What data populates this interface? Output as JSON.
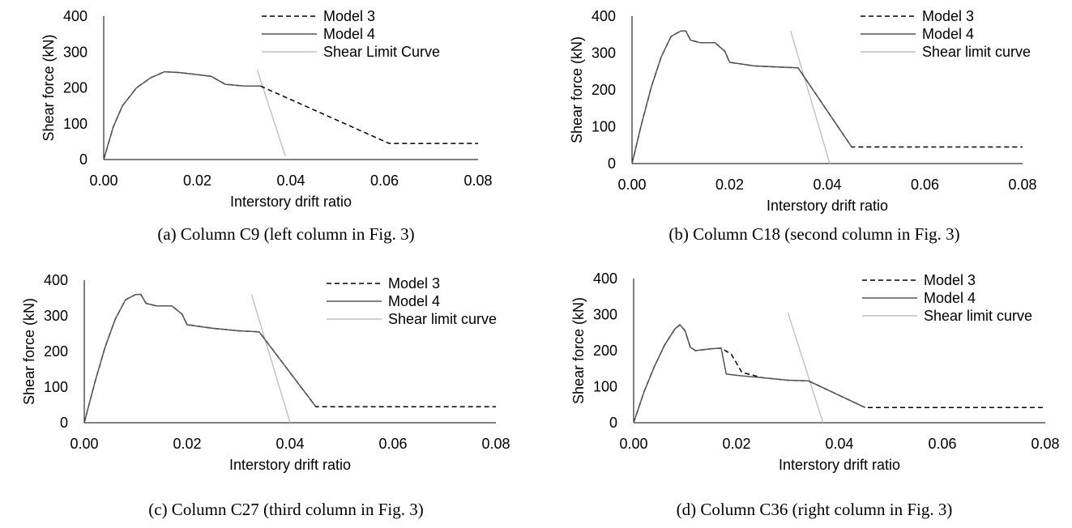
{
  "figure": {
    "colors": {
      "model3": "#000000",
      "model4": "#555555",
      "shear_limit": "#c0c0c0",
      "axis": "#000000"
    }
  },
  "chart_data": [
    {
      "type": "line",
      "caption": "(a)  Column C9 (left column in Fig. 3)",
      "xlabel": "Interstory drift ratio",
      "ylabel": "Shear force (kN)",
      "xlim": [
        0,
        0.08
      ],
      "ylim": [
        0,
        400
      ],
      "xticks": [
        "0.00",
        "0.02",
        "0.04",
        "0.06",
        "0.08"
      ],
      "yticks": [
        "0",
        "100",
        "200",
        "300",
        "400"
      ],
      "legend_position": "top-right",
      "series": [
        {
          "name": "Model 3",
          "style": "dashed",
          "x": [
            0,
            0.002,
            0.004,
            0.007,
            0.01,
            0.013,
            0.016,
            0.02,
            0.023,
            0.026,
            0.03,
            0.0335,
            0.045,
            0.061,
            0.08
          ],
          "y": [
            0,
            90,
            150,
            200,
            228,
            245,
            243,
            237,
            232,
            210,
            205,
            205,
            138,
            45,
            45
          ]
        },
        {
          "name": "Model 4",
          "style": "solid",
          "x": [
            0,
            0.002,
            0.004,
            0.007,
            0.01,
            0.013,
            0.016,
            0.02,
            0.023,
            0.026,
            0.03,
            0.0335
          ],
          "y": [
            0,
            90,
            150,
            200,
            228,
            245,
            243,
            237,
            232,
            210,
            205,
            205
          ]
        },
        {
          "name": "Shear Limit Curve",
          "style": "solid",
          "x": [
            0.0328,
            0.0388
          ],
          "y": [
            250,
            10
          ]
        }
      ]
    },
    {
      "type": "line",
      "caption": "(b)  Column C18 (second  column in Fig. 3)",
      "xlabel": "Interstory drift ratio",
      "ylabel": "Shear force (kN)",
      "xlim": [
        0,
        0.08
      ],
      "ylim": [
        0,
        400
      ],
      "xticks": [
        "0.00",
        "0.02",
        "0.04",
        "0.06",
        "0.08"
      ],
      "yticks": [
        "0",
        "100",
        "200",
        "300",
        "400"
      ],
      "legend_position": "top-right",
      "series": [
        {
          "name": "Model 3",
          "style": "dashed",
          "x": [
            0,
            0.002,
            0.004,
            0.006,
            0.008,
            0.01,
            0.011,
            0.012,
            0.014,
            0.017,
            0.019,
            0.02,
            0.025,
            0.03,
            0.034,
            0.045,
            0.08
          ],
          "y": [
            0,
            110,
            210,
            290,
            345,
            360,
            360,
            335,
            328,
            328,
            305,
            275,
            265,
            262,
            260,
            45,
            45
          ]
        },
        {
          "name": "Model 4",
          "style": "solid",
          "x": [
            0,
            0.002,
            0.004,
            0.006,
            0.008,
            0.01,
            0.011,
            0.012,
            0.014,
            0.017,
            0.019,
            0.02,
            0.025,
            0.03,
            0.034,
            0.045
          ],
          "y": [
            0,
            110,
            210,
            290,
            345,
            360,
            360,
            335,
            328,
            328,
            305,
            275,
            265,
            262,
            260,
            45
          ]
        },
        {
          "name": "Shear limit curve",
          "style": "solid",
          "x": [
            0.0325,
            0.0405
          ],
          "y": [
            360,
            0
          ]
        }
      ]
    },
    {
      "type": "line",
      "caption": "(c)  Column C27 (third  column in Fig. 3)",
      "xlabel": "Interstory drift ratio",
      "ylabel": "Shear force (kN)",
      "xlim": [
        0,
        0.08
      ],
      "ylim": [
        0,
        400
      ],
      "xticks": [
        "0.00",
        "0.02",
        "0.04",
        "0.06",
        "0.08"
      ],
      "yticks": [
        "0",
        "100",
        "200",
        "300",
        "400"
      ],
      "legend_position": "top-right",
      "series": [
        {
          "name": "Model 3",
          "style": "dashed",
          "x": [
            0,
            0.002,
            0.004,
            0.006,
            0.008,
            0.01,
            0.011,
            0.012,
            0.014,
            0.017,
            0.019,
            0.02,
            0.025,
            0.03,
            0.034,
            0.045,
            0.08
          ],
          "y": [
            0,
            110,
            210,
            290,
            345,
            360,
            360,
            335,
            328,
            328,
            305,
            275,
            265,
            258,
            255,
            45,
            45
          ]
        },
        {
          "name": "Model 4",
          "style": "solid",
          "x": [
            0,
            0.002,
            0.004,
            0.006,
            0.008,
            0.01,
            0.011,
            0.012,
            0.014,
            0.017,
            0.019,
            0.02,
            0.025,
            0.03,
            0.034,
            0.045
          ],
          "y": [
            0,
            110,
            210,
            290,
            345,
            360,
            360,
            335,
            328,
            328,
            305,
            275,
            265,
            258,
            255,
            45
          ]
        },
        {
          "name": "Shear limit curve",
          "style": "solid",
          "x": [
            0.0325,
            0.04
          ],
          "y": [
            360,
            0
          ]
        }
      ]
    },
    {
      "type": "line",
      "caption": "(d)  Column C36 (right  column in Fig. 3)",
      "xlabel": "Interstory drift ratio",
      "ylabel": "Shear force (kN)",
      "xlim": [
        0,
        0.08
      ],
      "ylim": [
        0,
        400
      ],
      "xticks": [
        "0.00",
        "0.02",
        "0.04",
        "0.06",
        "0.08"
      ],
      "yticks": [
        "0",
        "100",
        "200",
        "300",
        "400"
      ],
      "legend_position": "top-right",
      "series": [
        {
          "name": "Model 3",
          "style": "dashed",
          "x": [
            0,
            0.002,
            0.004,
            0.006,
            0.008,
            0.009,
            0.01,
            0.011,
            0.012,
            0.015,
            0.017,
            0.019,
            0.021,
            0.025,
            0.03,
            0.034,
            0.045,
            0.08
          ],
          "y": [
            0,
            85,
            155,
            215,
            260,
            272,
            255,
            210,
            200,
            205,
            207,
            190,
            140,
            125,
            118,
            116,
            42,
            42
          ]
        },
        {
          "name": "Model 4",
          "style": "solid",
          "x": [
            0,
            0.002,
            0.004,
            0.006,
            0.008,
            0.009,
            0.01,
            0.011,
            0.012,
            0.015,
            0.017,
            0.018,
            0.021,
            0.025,
            0.03,
            0.034,
            0.045
          ],
          "y": [
            0,
            85,
            155,
            215,
            260,
            272,
            255,
            210,
            200,
            205,
            207,
            135,
            130,
            125,
            118,
            116,
            42
          ]
        },
        {
          "name": "Shear limit curve",
          "style": "solid",
          "x": [
            0.03,
            0.0368
          ],
          "y": [
            305,
            0
          ]
        }
      ]
    }
  ]
}
